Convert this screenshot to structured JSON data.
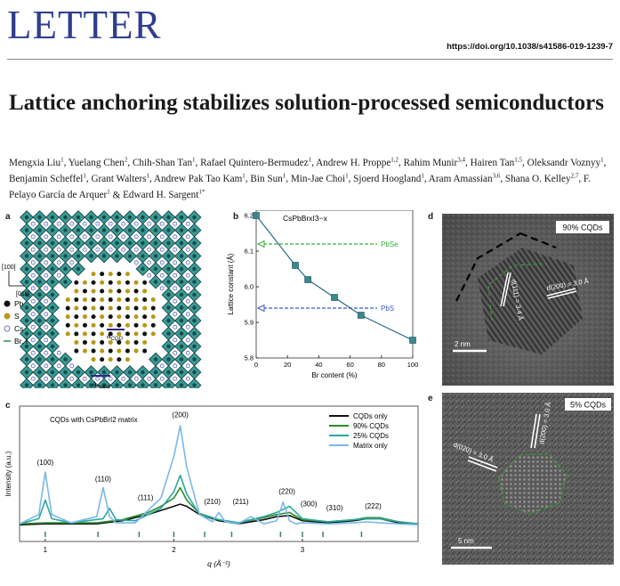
{
  "header": {
    "journal_label": "LETTER",
    "doi": "https://doi.org/10.1038/s41586-019-1239-7"
  },
  "article": {
    "title": "Lattice anchoring stabilizes solution-processed semiconductors",
    "authors": [
      {
        "name": "Mengxia Liu",
        "aff": "1"
      },
      {
        "name": "Yuelang Chen",
        "aff": "2"
      },
      {
        "name": "Chih-Shan Tan",
        "aff": "1"
      },
      {
        "name": "Rafael Quintero-Bermudez",
        "aff": "1"
      },
      {
        "name": "Andrew H. Proppe",
        "aff": "1,2"
      },
      {
        "name": "Rahim Munir",
        "aff": "3,4"
      },
      {
        "name": "Hairen Tan",
        "aff": "1,5"
      },
      {
        "name": "Oleksandr Voznyy",
        "aff": "1"
      },
      {
        "name": "Benjamin Scheffel",
        "aff": "1"
      },
      {
        "name": "Grant Walters",
        "aff": "1"
      },
      {
        "name": "Andrew Pak Tao Kam",
        "aff": "1"
      },
      {
        "name": "Bin Sun",
        "aff": "1"
      },
      {
        "name": "Min-Jae Choi",
        "aff": "1"
      },
      {
        "name": "Sjoerd Hoogland",
        "aff": "1"
      },
      {
        "name": "Aram Amassian",
        "aff": "3,6"
      },
      {
        "name": "Shana O. Kelley",
        "aff": "2,7"
      },
      {
        "name": "F. Pelayo García de Arquer",
        "aff": "1"
      },
      {
        "name": "Edward H. Sargent",
        "aff": "1*"
      }
    ],
    "author_join": "&"
  },
  "figure": {
    "panel_a": {
      "letter": "a",
      "direction_100": "[100]",
      "direction_010": "[010]",
      "legend": [
        {
          "label": "Pb",
          "color": "#111111"
        },
        {
          "label": "S",
          "color": "#b79a16"
        },
        {
          "label": "Cs",
          "color": "#6a78c8"
        },
        {
          "label": "Br, I",
          "color": "#2e8b57"
        }
      ],
      "label_cqd": "a",
      "label_cqd_sub": "CQD",
      "label_matrix": "a",
      "label_matrix_sub": "matrix",
      "colors": {
        "octahedron": "#3a9a96",
        "octahedron_dark": "#164a48",
        "pb": "#111111",
        "s": "#b79a16",
        "cs": "#6a78c8"
      }
    },
    "panel_b": {
      "letter": "b"
    },
    "panel_c": {
      "letter": "c"
    },
    "panel_d": {
      "letter": "d",
      "label": "90% CQDs",
      "d111": "d(111) = 3.4 Å",
      "d200": "d(200) = 3.0 Å",
      "scale": "2 nm"
    },
    "panel_e": {
      "letter": "e",
      "label": "5% CQDs",
      "d200": "d(200) = 3.0 Å",
      "d020": "d(020) = 3.0 Å",
      "scale": "5 nm"
    }
  },
  "chart_data": [
    {
      "type": "line",
      "panel": "b",
      "title": "CsPbBrxI3−x",
      "xlabel": "Br content (%)",
      "ylabel": "Lattice constant (Å)",
      "xlim": [
        0,
        100
      ],
      "ylim": [
        5.8,
        6.2
      ],
      "xticks": [
        0,
        20,
        40,
        60,
        80,
        100
      ],
      "yticks": [
        5.8,
        5.9,
        6.0,
        6.1,
        6.2
      ],
      "series": [
        {
          "x": [
            0,
            25,
            33,
            50,
            67,
            100
          ],
          "y": [
            6.2,
            6.06,
            6.02,
            5.97,
            5.92,
            5.85
          ],
          "color": "#2a6a8a"
        }
      ],
      "reference_lines": [
        {
          "name": "PbSe",
          "y": 6.12,
          "color": "#3aaa3a",
          "style": "dashed"
        },
        {
          "name": "PbS",
          "y": 5.94,
          "color": "#3a5ac8",
          "style": "dashed"
        }
      ]
    },
    {
      "type": "line",
      "panel": "c",
      "annotation": "CQDs with CsPbBrI2 matrix",
      "xlabel": "q (Å⁻¹)",
      "ylabel": "Intensity (a.u.)",
      "xlim": [
        0.8,
        3.9
      ],
      "xticks": [
        1,
        2,
        3
      ],
      "legend_position": "top-right",
      "series": [
        {
          "name": "CQDs only",
          "color": "#111111",
          "x": [
            0.8,
            1.0,
            1.2,
            1.4,
            1.6,
            1.8,
            1.9,
            2.0,
            2.05,
            2.1,
            2.2,
            2.35,
            2.5,
            2.7,
            2.8,
            2.9,
            3.0,
            3.2,
            3.4,
            3.5,
            3.6,
            3.75,
            3.9
          ],
          "y": [
            0.04,
            0.05,
            0.05,
            0.05,
            0.08,
            0.14,
            0.18,
            0.22,
            0.24,
            0.22,
            0.14,
            0.08,
            0.05,
            0.09,
            0.12,
            0.13,
            0.08,
            0.06,
            0.08,
            0.1,
            0.1,
            0.06,
            0.05
          ]
        },
        {
          "name": "90% CQDs",
          "color": "#2e8b2e",
          "x": [
            0.8,
            1.0,
            1.2,
            1.4,
            1.6,
            1.8,
            1.9,
            2.0,
            2.05,
            2.1,
            2.2,
            2.35,
            2.5,
            2.7,
            2.8,
            2.9,
            3.0,
            3.2,
            3.4,
            3.5,
            3.6,
            3.75,
            3.9
          ],
          "y": [
            0.05,
            0.06,
            0.06,
            0.06,
            0.09,
            0.16,
            0.22,
            0.3,
            0.4,
            0.28,
            0.15,
            0.09,
            0.06,
            0.11,
            0.14,
            0.16,
            0.09,
            0.07,
            0.09,
            0.11,
            0.11,
            0.07,
            0.05
          ]
        },
        {
          "name": "25% CQDs",
          "color": "#2aa8a0",
          "x": [
            0.8,
            0.95,
            1.0,
            1.05,
            1.2,
            1.45,
            1.5,
            1.55,
            1.7,
            1.9,
            2.0,
            2.05,
            2.1,
            2.2,
            2.35,
            2.5,
            2.7,
            2.8,
            2.9,
            3.0,
            3.2,
            3.4,
            3.5,
            3.6,
            3.75,
            3.9
          ],
          "y": [
            0.05,
            0.1,
            0.28,
            0.1,
            0.06,
            0.1,
            0.2,
            0.09,
            0.08,
            0.2,
            0.36,
            0.52,
            0.34,
            0.14,
            0.09,
            0.06,
            0.12,
            0.16,
            0.22,
            0.1,
            0.07,
            0.09,
            0.1,
            0.1,
            0.07,
            0.05
          ]
        },
        {
          "name": "Matrix only",
          "color": "#7ab8e8",
          "x": [
            0.8,
            0.95,
            1.0,
            1.05,
            1.2,
            1.4,
            1.45,
            1.5,
            1.55,
            1.7,
            1.9,
            2.0,
            2.05,
            2.1,
            2.2,
            2.3,
            2.35,
            2.4,
            2.5,
            2.6,
            2.7,
            2.8,
            2.85,
            2.9,
            2.95,
            3.0,
            3.2,
            3.4,
            3.5,
            3.6,
            3.75,
            3.9
          ],
          "y": [
            0.05,
            0.14,
            0.55,
            0.14,
            0.06,
            0.12,
            0.4,
            0.12,
            0.06,
            0.06,
            0.3,
            0.7,
            1.0,
            0.6,
            0.14,
            0.07,
            0.16,
            0.07,
            0.05,
            0.12,
            0.05,
            0.08,
            0.26,
            0.08,
            0.05,
            0.06,
            0.05,
            0.06,
            0.07,
            0.06,
            0.05,
            0.04
          ]
        }
      ],
      "peak_labels": [
        {
          "text": "(100)",
          "q": 1.0
        },
        {
          "text": "(110)",
          "q": 1.45
        },
        {
          "text": "(111)",
          "q": 1.78
        },
        {
          "text": "(200)",
          "q": 2.05
        },
        {
          "text": "(210)",
          "q": 2.3
        },
        {
          "text": "(211)",
          "q": 2.52
        },
        {
          "text": "(220)",
          "q": 2.88
        },
        {
          "text": "(300)",
          "q": 3.05
        },
        {
          "text": "(310)",
          "q": 3.25
        },
        {
          "text": "(222)",
          "q": 3.55
        }
      ],
      "reference_ticks_q": [
        1.0,
        1.41,
        1.73,
        2.0,
        2.24,
        2.45,
        2.83,
        3.0,
        3.16,
        3.46
      ]
    }
  ]
}
